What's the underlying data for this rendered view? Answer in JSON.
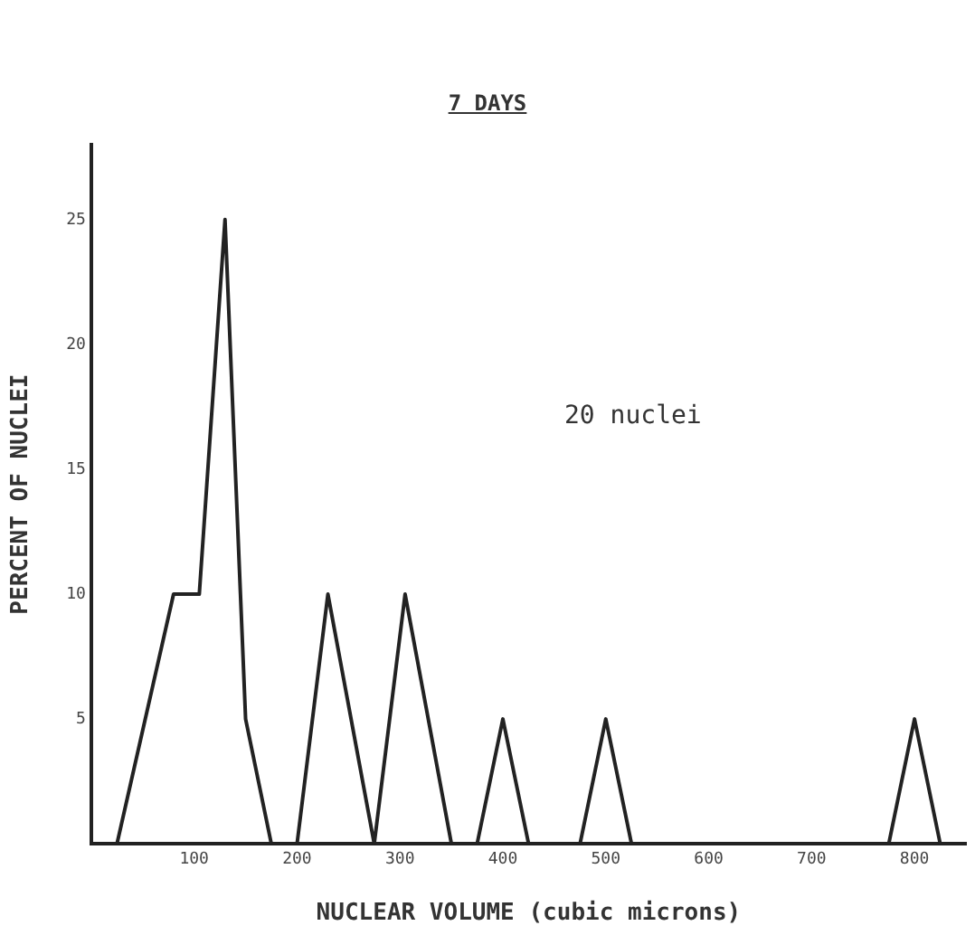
{
  "chart_data": {
    "type": "line",
    "title": "7 DAYS",
    "xlabel": "NUCLEAR VOLUME (cubic microns)",
    "ylabel": "PERCENT OF NUCLEI",
    "annotations": [
      "20 nuclei"
    ],
    "x": [
      0,
      25,
      80,
      105,
      130,
      145,
      150,
      175,
      200,
      230,
      275,
      305,
      350,
      375,
      400,
      425,
      475,
      500,
      525,
      775,
      800,
      825
    ],
    "series": [
      {
        "color": "#222222",
        "values": [
          0,
          0,
          10,
          10,
          25,
          10,
          5,
          0,
          0,
          10,
          0,
          10,
          0,
          0,
          5,
          0,
          0,
          5,
          0,
          0,
          5,
          0
        ]
      }
    ],
    "xlim": [
      0,
      850
    ],
    "xticks": [
      100,
      200,
      300,
      400,
      500,
      600,
      700,
      800
    ],
    "ylim": [
      0,
      28
    ],
    "yticks": [
      5,
      10,
      15,
      20,
      25
    ],
    "grid": false,
    "legend": false,
    "marker": "none",
    "line_style": "solid"
  }
}
